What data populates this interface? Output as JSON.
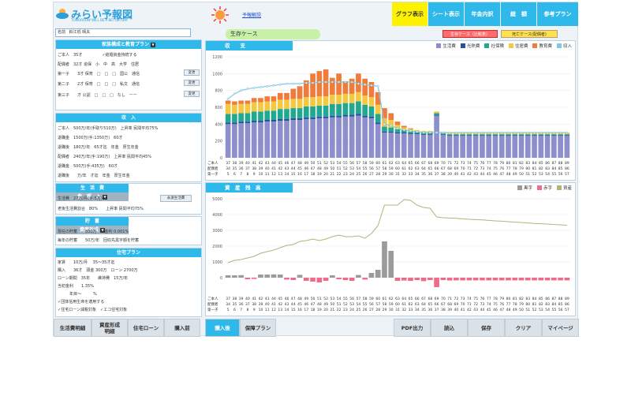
{
  "app": {
    "logo_text": "みらい予報図",
    "logo_sub": "TOMORROW WILL BE A BETTER DAY",
    "forecast_link": "予報解説",
    "tabs": [
      {
        "label": "グラフ表示",
        "active": true
      },
      {
        "label": "シート表示",
        "active": false
      },
      {
        "label": "年金内訳",
        "active": false
      },
      {
        "label": "総　額",
        "active": false
      },
      {
        "label": "参考プラン",
        "active": false
      }
    ]
  },
  "name_field": {
    "label": "名前",
    "value": "鈴江低 晴夫"
  },
  "family_panel": {
    "title": "家族構成と教育プラン",
    "header_row": "ご本人　35才　　　　　✓結婚資金持続する",
    "rows": [
      "配偶者　32才 追保　小　中　高　大学　住居",
      "第一子　　3才 保育　□　□　□　国公　通信",
      "第二子　　2才 保育　□　□　□　私文　通信",
      "第三子　　才 公認　□　□　□　なし　ーー"
    ],
    "change_label": "変更"
  },
  "income_panel": {
    "title": "収　入",
    "rows": [
      "ご本人　500万/年(手取り510万)　上昇率 民間平均75%",
      "退職金　1500万(手:1350万)　60才",
      "退職後　180万/年　65才迄　年金　厚生年金",
      "配偶者　240万/年(手:190万)　上昇率 民間平均45%",
      "退職金　500万(手:435万)　60才",
      "退職後　　万/年　才迄　年金　厚生年金"
    ]
  },
  "living_panel": {
    "title": "生　活　費",
    "sub_title": "参　照　入",
    "rows": [
      "生活費　27万/月(手:5万)",
      "老後生活費割合　80%　　上昇率 民間平均75%"
    ],
    "button_label": "永遠生活費"
  },
  "savings_panel": {
    "title": "貯　蓄",
    "sub_title": "資産形成",
    "rows": [
      "現在の貯蓄　　800万　　金利 0.001%",
      "毎年の貯蓄　　50万/年　回収先黒字額を貯蓄"
    ]
  },
  "housing_panel": {
    "title": "住宅プラン",
    "rows": [
      "家賃　　10万/月 　35〜35才迄",
      "購入　　36才　頭金 300万　ローン 2700万",
      "ローン期間　35年　　維持費　15万/年",
      "当初金利　　1.35%",
      "　　　年目〜　　　%",
      "✓団体信用生命を適用する",
      "✓住宅ローン減税対象　✓エコ住宅対象"
    ]
  },
  "case": {
    "label": "生存ケース",
    "btn1": "生存ケース（比較表）",
    "btn2": "死亡ケース(配偶者)"
  },
  "income_chart": {
    "title": "収　　支",
    "legend": [
      {
        "label": "生活費",
        "color": "#8c8fcc"
      },
      {
        "label": "光熱費",
        "color": "#2a4ea0"
      },
      {
        "label": "社保険",
        "color": "#20a890"
      },
      {
        "label": "住居費",
        "color": "#f5c842"
      },
      {
        "label": "教育費",
        "color": "#f07b3a"
      },
      {
        "label": "収入",
        "color": "#7ec8e3"
      }
    ],
    "y_ticks": [
      "1200",
      "1000",
      "800",
      "600",
      "400",
      "200",
      "0"
    ],
    "row_labels": [
      "ご本人",
      "配偶者",
      "第一子"
    ]
  },
  "asset_chart": {
    "title": "資　産　残　高",
    "legend": [
      {
        "label": "黒字",
        "color": "#9b9b9b"
      },
      {
        "label": "赤字",
        "color": "#f06b8b"
      },
      {
        "label": "資産",
        "color": "#b8b07a"
      }
    ],
    "y_ticks": [
      "5000",
      "4000",
      "3000",
      "2000",
      "1000",
      "0"
    ],
    "row_labels": [
      "ご本人",
      "配偶者",
      "第一子"
    ]
  },
  "chart_data": [
    {
      "type": "bar",
      "title": "収　　支",
      "ylim": [
        0,
        1200
      ],
      "categories": [
        "37",
        "38",
        "39",
        "40",
        "41",
        "42",
        "43",
        "44",
        "45",
        "46",
        "47",
        "48",
        "49",
        "50",
        "51",
        "52",
        "53",
        "54",
        "55",
        "56",
        "57",
        "58",
        "59",
        "60",
        "61",
        "62",
        "63",
        "64",
        "65",
        "66",
        "67",
        "68",
        "69",
        "70",
        "71",
        "72",
        "73",
        "74",
        "75",
        "76",
        "77",
        "78",
        "79",
        "80",
        "81",
        "82",
        "83",
        "84",
        "85",
        "86",
        "87",
        "88",
        "89"
      ],
      "spouse_ages": [
        "34",
        "35",
        "36",
        "37",
        "38",
        "39",
        "40",
        "41",
        "42",
        "43",
        "44",
        "45",
        "46",
        "47",
        "48",
        "49",
        "50",
        "51",
        "52",
        "53",
        "54",
        "55",
        "56",
        "57",
        "58",
        "59",
        "60",
        "61",
        "62",
        "63",
        "64",
        "65",
        "66",
        "67",
        "68",
        "69",
        "70",
        "71",
        "72",
        "73",
        "74",
        "75",
        "76",
        "77",
        "78",
        "79",
        "80",
        "81",
        "82",
        "83",
        "84",
        "85",
        "86"
      ],
      "child_ages": [
        "5",
        "6",
        "7",
        "8",
        "9",
        "10",
        "11",
        "12",
        "13",
        "14",
        "15",
        "16",
        "17",
        "18",
        "19",
        "20",
        "21",
        "22",
        "23",
        "24",
        "25",
        "26",
        "27",
        "28",
        "29",
        "30",
        "31",
        "32",
        "33",
        "34",
        "35",
        "36",
        "37",
        "38",
        "39",
        "40",
        "41",
        "42",
        "43",
        "44",
        "45",
        "46",
        "47",
        "48",
        "49",
        "50",
        "51",
        "52",
        "53",
        "54",
        "55",
        "56",
        "57"
      ],
      "series": [
        {
          "name": "生活費",
          "values": [
            400,
            400,
            410,
            410,
            420,
            420,
            430,
            430,
            440,
            440,
            450,
            450,
            460,
            460,
            470,
            470,
            480,
            480,
            490,
            490,
            500,
            480,
            470,
            400,
            300,
            300,
            290,
            290,
            280,
            280,
            270,
            270,
            500,
            270,
            260,
            260,
            260,
            260,
            260,
            260,
            260,
            260,
            260,
            260,
            260,
            260,
            260,
            260,
            260,
            260,
            260,
            260,
            260
          ]
        },
        {
          "name": "光熱費",
          "values": [
            20,
            20,
            20,
            20,
            20,
            20,
            20,
            20,
            20,
            20,
            20,
            20,
            20,
            20,
            20,
            20,
            20,
            20,
            20,
            20,
            20,
            20,
            20,
            20,
            10,
            10,
            10,
            10,
            10,
            10,
            10,
            10,
            10,
            10,
            10,
            10,
            10,
            10,
            10,
            10,
            10,
            10,
            10,
            10,
            10,
            10,
            10,
            10,
            10,
            10,
            10,
            10,
            10
          ]
        },
        {
          "name": "社保険",
          "values": [
            100,
            100,
            100,
            100,
            110,
            110,
            110,
            110,
            120,
            120,
            120,
            120,
            130,
            130,
            130,
            130,
            140,
            140,
            140,
            140,
            150,
            130,
            120,
            100,
            60,
            50,
            40,
            30,
            20,
            20,
            20,
            20,
            20,
            10,
            10,
            10,
            10,
            10,
            10,
            10,
            10,
            10,
            10,
            10,
            10,
            10,
            10,
            10,
            10,
            10,
            10,
            10,
            10
          ]
        },
        {
          "name": "住居費",
          "values": [
            120,
            110,
            110,
            110,
            110,
            110,
            110,
            110,
            110,
            110,
            110,
            110,
            110,
            110,
            110,
            110,
            110,
            110,
            110,
            110,
            110,
            110,
            110,
            110,
            100,
            90,
            50,
            30,
            30,
            20,
            20,
            20,
            20,
            20,
            20,
            20,
            20,
            20,
            20,
            20,
            20,
            20,
            20,
            20,
            20,
            20,
            20,
            20,
            20,
            20,
            20,
            20,
            20
          ]
        },
        {
          "name": "教育費",
          "values": [
            40,
            40,
            40,
            40,
            50,
            50,
            60,
            60,
            80,
            80,
            120,
            150,
            200,
            280,
            300,
            320,
            200,
            250,
            150,
            180,
            220,
            200,
            180,
            150,
            120,
            80,
            40,
            20,
            10,
            0,
            0,
            0,
            0,
            0,
            0,
            0,
            0,
            0,
            0,
            0,
            0,
            0,
            0,
            0,
            0,
            0,
            0,
            0,
            0,
            0,
            0,
            0,
            0
          ]
        },
        {
          "name": "収入",
          "values": [
            700,
            760,
            800,
            820,
            830,
            840,
            850,
            860,
            870,
            880,
            880,
            880,
            890,
            890,
            900,
            900,
            900,
            900,
            900,
            900,
            880,
            870,
            860,
            850,
            400,
            380,
            350,
            330,
            320,
            310,
            300,
            300,
            300,
            300,
            300,
            300,
            300,
            300,
            300,
            300,
            300,
            300,
            300,
            300,
            300,
            300,
            300,
            300,
            300,
            300,
            300,
            300,
            300
          ]
        }
      ]
    },
    {
      "type": "bar",
      "title": "資　産　残　高",
      "ylim": [
        -1000,
        5000
      ],
      "categories": [
        "37",
        "38",
        "39",
        "40",
        "41",
        "42",
        "43",
        "44",
        "45",
        "46",
        "47",
        "48",
        "49",
        "50",
        "51",
        "52",
        "53",
        "54",
        "55",
        "56",
        "57",
        "58",
        "59",
        "60",
        "61",
        "62",
        "63",
        "64",
        "65",
        "66",
        "67",
        "68",
        "69",
        "70",
        "71",
        "72",
        "73",
        "74",
        "75",
        "76",
        "77",
        "78",
        "79",
        "80",
        "81",
        "82",
        "83",
        "84",
        "85",
        "86",
        "87",
        "88",
        "89"
      ],
      "series": [
        {
          "name": "黒字",
          "values": [
            150,
            150,
            160,
            0,
            0,
            200,
            200,
            210,
            200,
            0,
            0,
            180,
            0,
            0,
            0,
            0,
            150,
            0,
            0,
            0,
            170,
            0,
            300,
            500,
            2300,
            1700,
            0,
            0,
            0,
            0,
            0,
            0,
            0,
            0,
            0,
            0,
            0,
            0,
            0,
            0,
            0,
            0,
            0,
            0,
            0,
            0,
            0,
            0,
            0,
            0,
            0,
            0,
            0
          ]
        },
        {
          "name": "赤字",
          "values": [
            0,
            0,
            0,
            -100,
            -80,
            0,
            0,
            0,
            0,
            -120,
            -150,
            0,
            -200,
            -250,
            -300,
            -200,
            0,
            -100,
            -150,
            -200,
            0,
            -120,
            0,
            0,
            0,
            0,
            -200,
            -180,
            -200,
            -150,
            -220,
            -150,
            -600,
            -150,
            -180,
            -170,
            -170,
            -170,
            -170,
            -170,
            -170,
            -170,
            -170,
            -170,
            -170,
            -170,
            -170,
            -170,
            -170,
            -170,
            -170,
            -170,
            -170
          ]
        },
        {
          "name": "資産",
          "values": [
            950,
            1100,
            1150,
            1250,
            1350,
            1550,
            1650,
            1750,
            1900,
            2050,
            2100,
            2300,
            2350,
            2450,
            2350,
            2450,
            2600,
            2700,
            2600,
            2600,
            2650,
            2500,
            2800,
            3300,
            4600,
            4600,
            4600,
            4950,
            4900,
            4600,
            4450,
            4400,
            3850,
            3800,
            3780,
            3760,
            3730,
            3700,
            3680,
            3660,
            3630,
            3600,
            3580,
            3550,
            3520,
            3500,
            3470,
            3440,
            3420,
            3400,
            3370,
            3350,
            3320
          ]
        }
      ]
    }
  ],
  "bottom_buttons": [
    {
      "label": "生活費明細"
    },
    {
      "label": "資産形成\n明細"
    },
    {
      "label": "住宅ローン"
    },
    {
      "label": "購入前"
    },
    {
      "label": "購入後"
    },
    {
      "label": "保障プラン"
    },
    {
      "label": "PDF出力"
    },
    {
      "label": "読込"
    },
    {
      "label": "保存"
    },
    {
      "label": "クリア"
    },
    {
      "label": "マイページ"
    }
  ]
}
